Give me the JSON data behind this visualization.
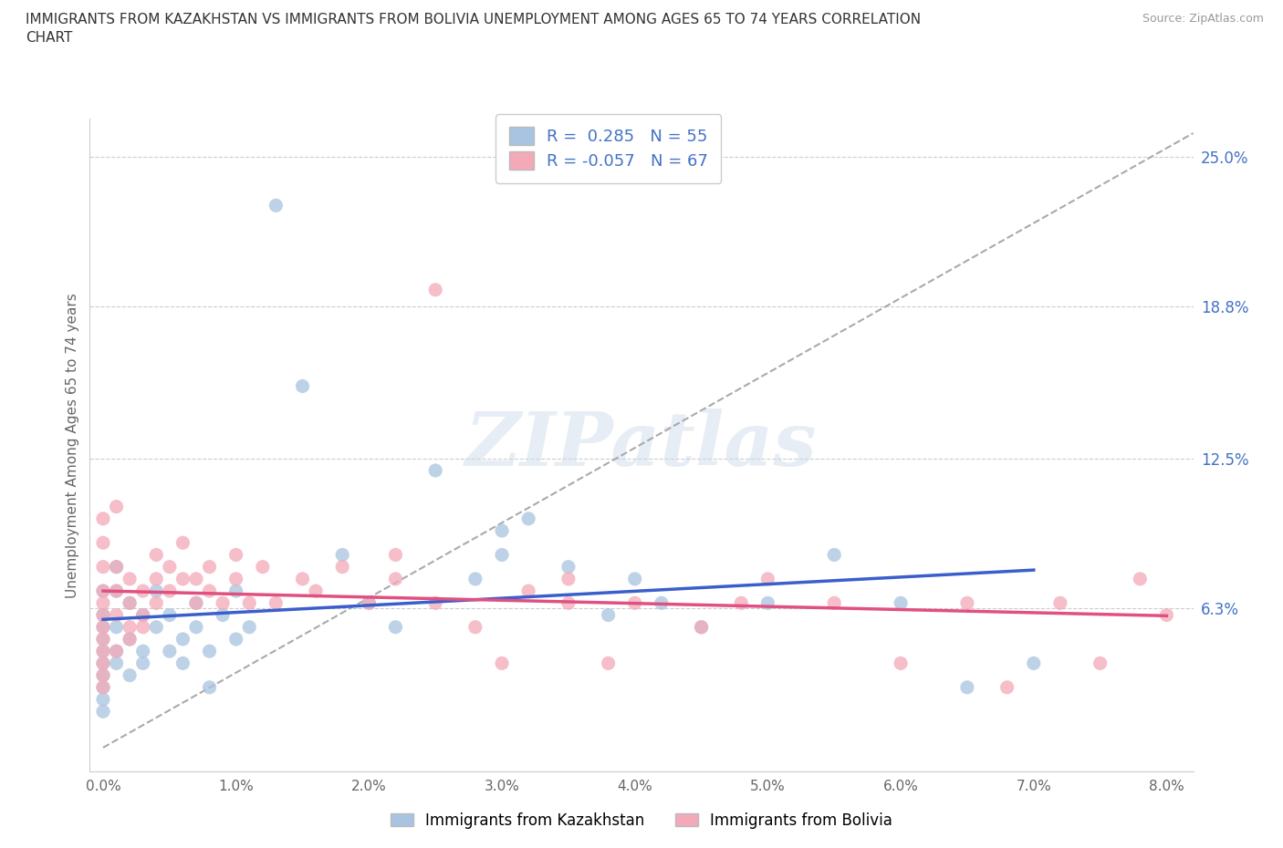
{
  "title": "IMMIGRANTS FROM KAZAKHSTAN VS IMMIGRANTS FROM BOLIVIA UNEMPLOYMENT AMONG AGES 65 TO 74 YEARS CORRELATION\nCHART",
  "source": "Source: ZipAtlas.com",
  "ylabel": "Unemployment Among Ages 65 to 74 years",
  "xlim": [
    -0.001,
    0.082
  ],
  "ylim": [
    -0.005,
    0.266
  ],
  "yticks": [
    0.063,
    0.125,
    0.188,
    0.25
  ],
  "ytick_labels": [
    "6.3%",
    "12.5%",
    "18.8%",
    "25.0%"
  ],
  "xticks": [
    0.0,
    0.01,
    0.02,
    0.03,
    0.04,
    0.05,
    0.06,
    0.07,
    0.08
  ],
  "xtick_labels": [
    "0.0%",
    "1.0%",
    "2.0%",
    "3.0%",
    "4.0%",
    "5.0%",
    "6.0%",
    "7.0%",
    "8.0%"
  ],
  "kazakhstan_color": "#a8c4e0",
  "bolivia_color": "#f4a9b8",
  "kazakhstan_line_color": "#3a5fcd",
  "bolivia_line_color": "#e05080",
  "dashed_line_color": "#aaaaaa",
  "R_kaz": 0.285,
  "N_kaz": 55,
  "R_bol": -0.057,
  "N_bol": 67,
  "legend_label_kaz": "Immigrants from Kazakhstan",
  "legend_label_bol": "Immigrants from Bolivia",
  "watermark": "ZIPatlas",
  "kazakhstan_x": [
    0.0,
    0.0,
    0.0,
    0.0,
    0.0,
    0.0,
    0.0,
    0.0,
    0.0,
    0.0,
    0.001,
    0.001,
    0.001,
    0.001,
    0.001,
    0.002,
    0.002,
    0.002,
    0.003,
    0.003,
    0.003,
    0.004,
    0.004,
    0.005,
    0.005,
    0.006,
    0.006,
    0.007,
    0.007,
    0.008,
    0.008,
    0.009,
    0.01,
    0.01,
    0.011,
    0.013,
    0.015,
    0.018,
    0.02,
    0.022,
    0.025,
    0.028,
    0.03,
    0.03,
    0.032,
    0.035,
    0.038,
    0.04,
    0.042,
    0.045,
    0.05,
    0.055,
    0.06,
    0.065,
    0.07
  ],
  "kazakhstan_y": [
    0.05,
    0.04,
    0.06,
    0.035,
    0.07,
    0.055,
    0.045,
    0.025,
    0.03,
    0.02,
    0.055,
    0.045,
    0.07,
    0.08,
    0.04,
    0.05,
    0.065,
    0.035,
    0.045,
    0.06,
    0.04,
    0.055,
    0.07,
    0.045,
    0.06,
    0.05,
    0.04,
    0.055,
    0.065,
    0.045,
    0.03,
    0.06,
    0.05,
    0.07,
    0.055,
    0.23,
    0.155,
    0.085,
    0.065,
    0.055,
    0.12,
    0.075,
    0.085,
    0.095,
    0.1,
    0.08,
    0.06,
    0.075,
    0.065,
    0.055,
    0.065,
    0.085,
    0.065,
    0.03,
    0.04
  ],
  "bolivia_x": [
    0.0,
    0.0,
    0.0,
    0.0,
    0.0,
    0.0,
    0.0,
    0.0,
    0.0,
    0.0,
    0.0,
    0.0,
    0.001,
    0.001,
    0.001,
    0.001,
    0.001,
    0.002,
    0.002,
    0.002,
    0.002,
    0.003,
    0.003,
    0.003,
    0.004,
    0.004,
    0.004,
    0.005,
    0.005,
    0.006,
    0.006,
    0.007,
    0.007,
    0.008,
    0.008,
    0.009,
    0.01,
    0.01,
    0.011,
    0.012,
    0.013,
    0.015,
    0.016,
    0.018,
    0.02,
    0.022,
    0.022,
    0.025,
    0.025,
    0.028,
    0.03,
    0.032,
    0.035,
    0.035,
    0.038,
    0.04,
    0.045,
    0.048,
    0.05,
    0.055,
    0.06,
    0.065,
    0.068,
    0.072,
    0.075,
    0.078,
    0.08
  ],
  "bolivia_y": [
    0.05,
    0.04,
    0.06,
    0.07,
    0.035,
    0.08,
    0.09,
    0.1,
    0.055,
    0.065,
    0.045,
    0.03,
    0.045,
    0.06,
    0.07,
    0.08,
    0.105,
    0.05,
    0.065,
    0.055,
    0.075,
    0.06,
    0.07,
    0.055,
    0.065,
    0.075,
    0.085,
    0.07,
    0.08,
    0.075,
    0.09,
    0.065,
    0.075,
    0.07,
    0.08,
    0.065,
    0.075,
    0.085,
    0.065,
    0.08,
    0.065,
    0.075,
    0.07,
    0.08,
    0.065,
    0.075,
    0.085,
    0.065,
    0.195,
    0.055,
    0.04,
    0.07,
    0.065,
    0.075,
    0.04,
    0.065,
    0.055,
    0.065,
    0.075,
    0.065,
    0.04,
    0.065,
    0.03,
    0.065,
    0.04,
    0.075,
    0.06
  ]
}
